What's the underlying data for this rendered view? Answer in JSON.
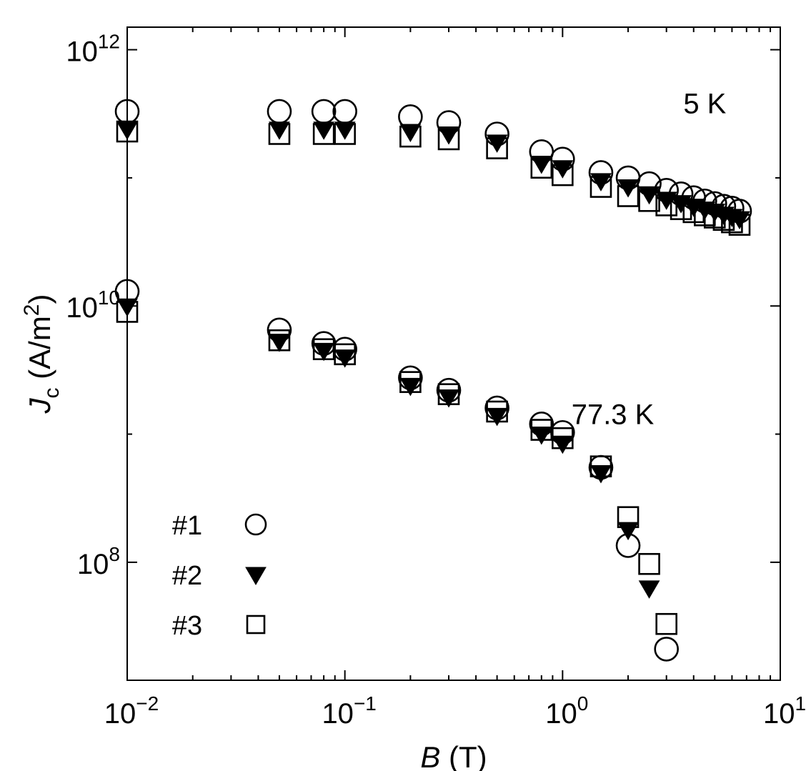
{
  "chart_data": {
    "type": "scatter",
    "x_scale": "log",
    "y_scale": "log",
    "xlim": [
      0.01,
      10
    ],
    "ylim": [
      12000000.0,
      1500000000000.0
    ],
    "xlabel": {
      "symbol": "B",
      "unit": "(T)"
    },
    "ylabel": {
      "symbol": "J",
      "subscript": "c",
      "unit_prefix": "(A/m",
      "unit_sup": "2",
      "unit_suffix": ")"
    },
    "x_ticks": [
      {
        "value": 0.01,
        "base": "10",
        "exp": "−2"
      },
      {
        "value": 0.1,
        "base": "10",
        "exp": "−1"
      },
      {
        "value": 1,
        "base": "10",
        "exp": "0"
      },
      {
        "value": 10,
        "base": "10",
        "exp": "1"
      }
    ],
    "y_ticks": [
      {
        "value": 100000000.0,
        "base": "10",
        "exp": "8"
      },
      {
        "value": 10000000000.0,
        "base": "10",
        "exp": "10"
      },
      {
        "value": 1000000000000.0,
        "base": "10",
        "exp": "12"
      }
    ],
    "annotations": [
      {
        "text": "5 K",
        "at": [
          4.5,
          320000000000.0
        ]
      },
      {
        "text": "77.3 K",
        "at": [
          1.7,
          1200000000.0
        ]
      }
    ],
    "legend": {
      "placement": "bottom-left",
      "entries": [
        {
          "label": "#1",
          "marker": "open-circle"
        },
        {
          "label": "#2",
          "marker": "filled-down-triangle"
        },
        {
          "label": "#3",
          "marker": "open-square"
        }
      ]
    },
    "series": [
      {
        "name": "#1",
        "marker": "open-circle",
        "condition": "5 K",
        "x": [
          0.01,
          0.05,
          0.08,
          0.1,
          0.2,
          0.3,
          0.5,
          0.8,
          1.0,
          1.5,
          2.0,
          2.5,
          3.0,
          3.5,
          4.0,
          4.5,
          5.0,
          5.5,
          6.0,
          6.5
        ],
        "y": [
          330000000000.0,
          330000000000.0,
          330000000000.0,
          330000000000.0,
          300000000000.0,
          270000000000.0,
          220000000000.0,
          160000000000.0,
          140000000000.0,
          110000000000.0,
          100000000000.0,
          90000000000.0,
          80000000000.0,
          75000000000.0,
          70000000000.0,
          66000000000.0,
          63000000000.0,
          60000000000.0,
          58000000000.0,
          55000000000.0
        ]
      },
      {
        "name": "#2",
        "marker": "filled-down-triangle",
        "condition": "5 K",
        "x": [
          0.01,
          0.05,
          0.08,
          0.1,
          0.2,
          0.3,
          0.5,
          0.8,
          1.0,
          1.5,
          2.0,
          2.5,
          3.0,
          3.5,
          4.0,
          4.5,
          5.0,
          5.5,
          6.0,
          6.5
        ],
        "y": [
          240000000000.0,
          240000000000.0,
          240000000000.0,
          240000000000.0,
          230000000000.0,
          220000000000.0,
          190000000000.0,
          130000000000.0,
          120000000000.0,
          95000000000.0,
          85000000000.0,
          75000000000.0,
          68000000000.0,
          64000000000.0,
          60000000000.0,
          57000000000.0,
          55000000000.0,
          52000000000.0,
          50000000000.0,
          48000000000.0
        ]
      },
      {
        "name": "#3",
        "marker": "open-square",
        "condition": "5 K",
        "x": [
          0.01,
          0.05,
          0.08,
          0.1,
          0.2,
          0.3,
          0.5,
          0.8,
          1.0,
          1.5,
          2.0,
          2.5,
          3.0,
          3.5,
          4.0,
          4.5,
          5.0,
          5.5,
          6.0,
          6.5
        ],
        "y": [
          230000000000.0,
          220000000000.0,
          220000000000.0,
          220000000000.0,
          210000000000.0,
          200000000000.0,
          170000000000.0,
          120000000000.0,
          105000000000.0,
          85000000000.0,
          72000000000.0,
          66000000000.0,
          61000000000.0,
          57000000000.0,
          54000000000.0,
          51000000000.0,
          49000000000.0,
          47000000000.0,
          45000000000.0,
          43000000000.0
        ]
      },
      {
        "name": "#1",
        "marker": "open-circle",
        "condition": "77.3 K",
        "x": [
          0.01,
          0.05,
          0.08,
          0.1,
          0.2,
          0.3,
          0.5,
          0.8,
          1.0,
          1.5,
          2.0,
          3.0
        ],
        "y": [
          13000000000.0,
          6500000000.0,
          5100000000.0,
          4600000000.0,
          2750000000.0,
          2200000000.0,
          1600000000.0,
          1200000000.0,
          1030000000.0,
          550000000.0,
          135000000.0,
          21000000.0
        ]
      },
      {
        "name": "#2",
        "marker": "filled-down-triangle",
        "condition": "77.3 K",
        "x": [
          0.01,
          0.05,
          0.08,
          0.1,
          0.2,
          0.3,
          0.5,
          0.8,
          1.0,
          1.5,
          2.0,
          2.5
        ],
        "y": [
          10000000000.0,
          5300000000.0,
          4500000000.0,
          4000000000.0,
          2400000000.0,
          1950000000.0,
          1400000000.0,
          1000000000.0,
          850000000.0,
          500000000.0,
          180000000.0,
          63000000.0
        ]
      },
      {
        "name": "#3",
        "marker": "open-square",
        "condition": "77.3 K",
        "x": [
          0.01,
          0.05,
          0.08,
          0.1,
          0.2,
          0.3,
          0.5,
          0.8,
          1.0,
          1.5,
          2.0,
          2.5,
          3.0
        ],
        "y": [
          9000000000.0,
          5400000000.0,
          4600000000.0,
          4200000000.0,
          2550000000.0,
          2050000000.0,
          1500000000.0,
          1080000000.0,
          930000000.0,
          560000000.0,
          225000000.0,
          97000000.0,
          33000000.0
        ]
      }
    ]
  }
}
